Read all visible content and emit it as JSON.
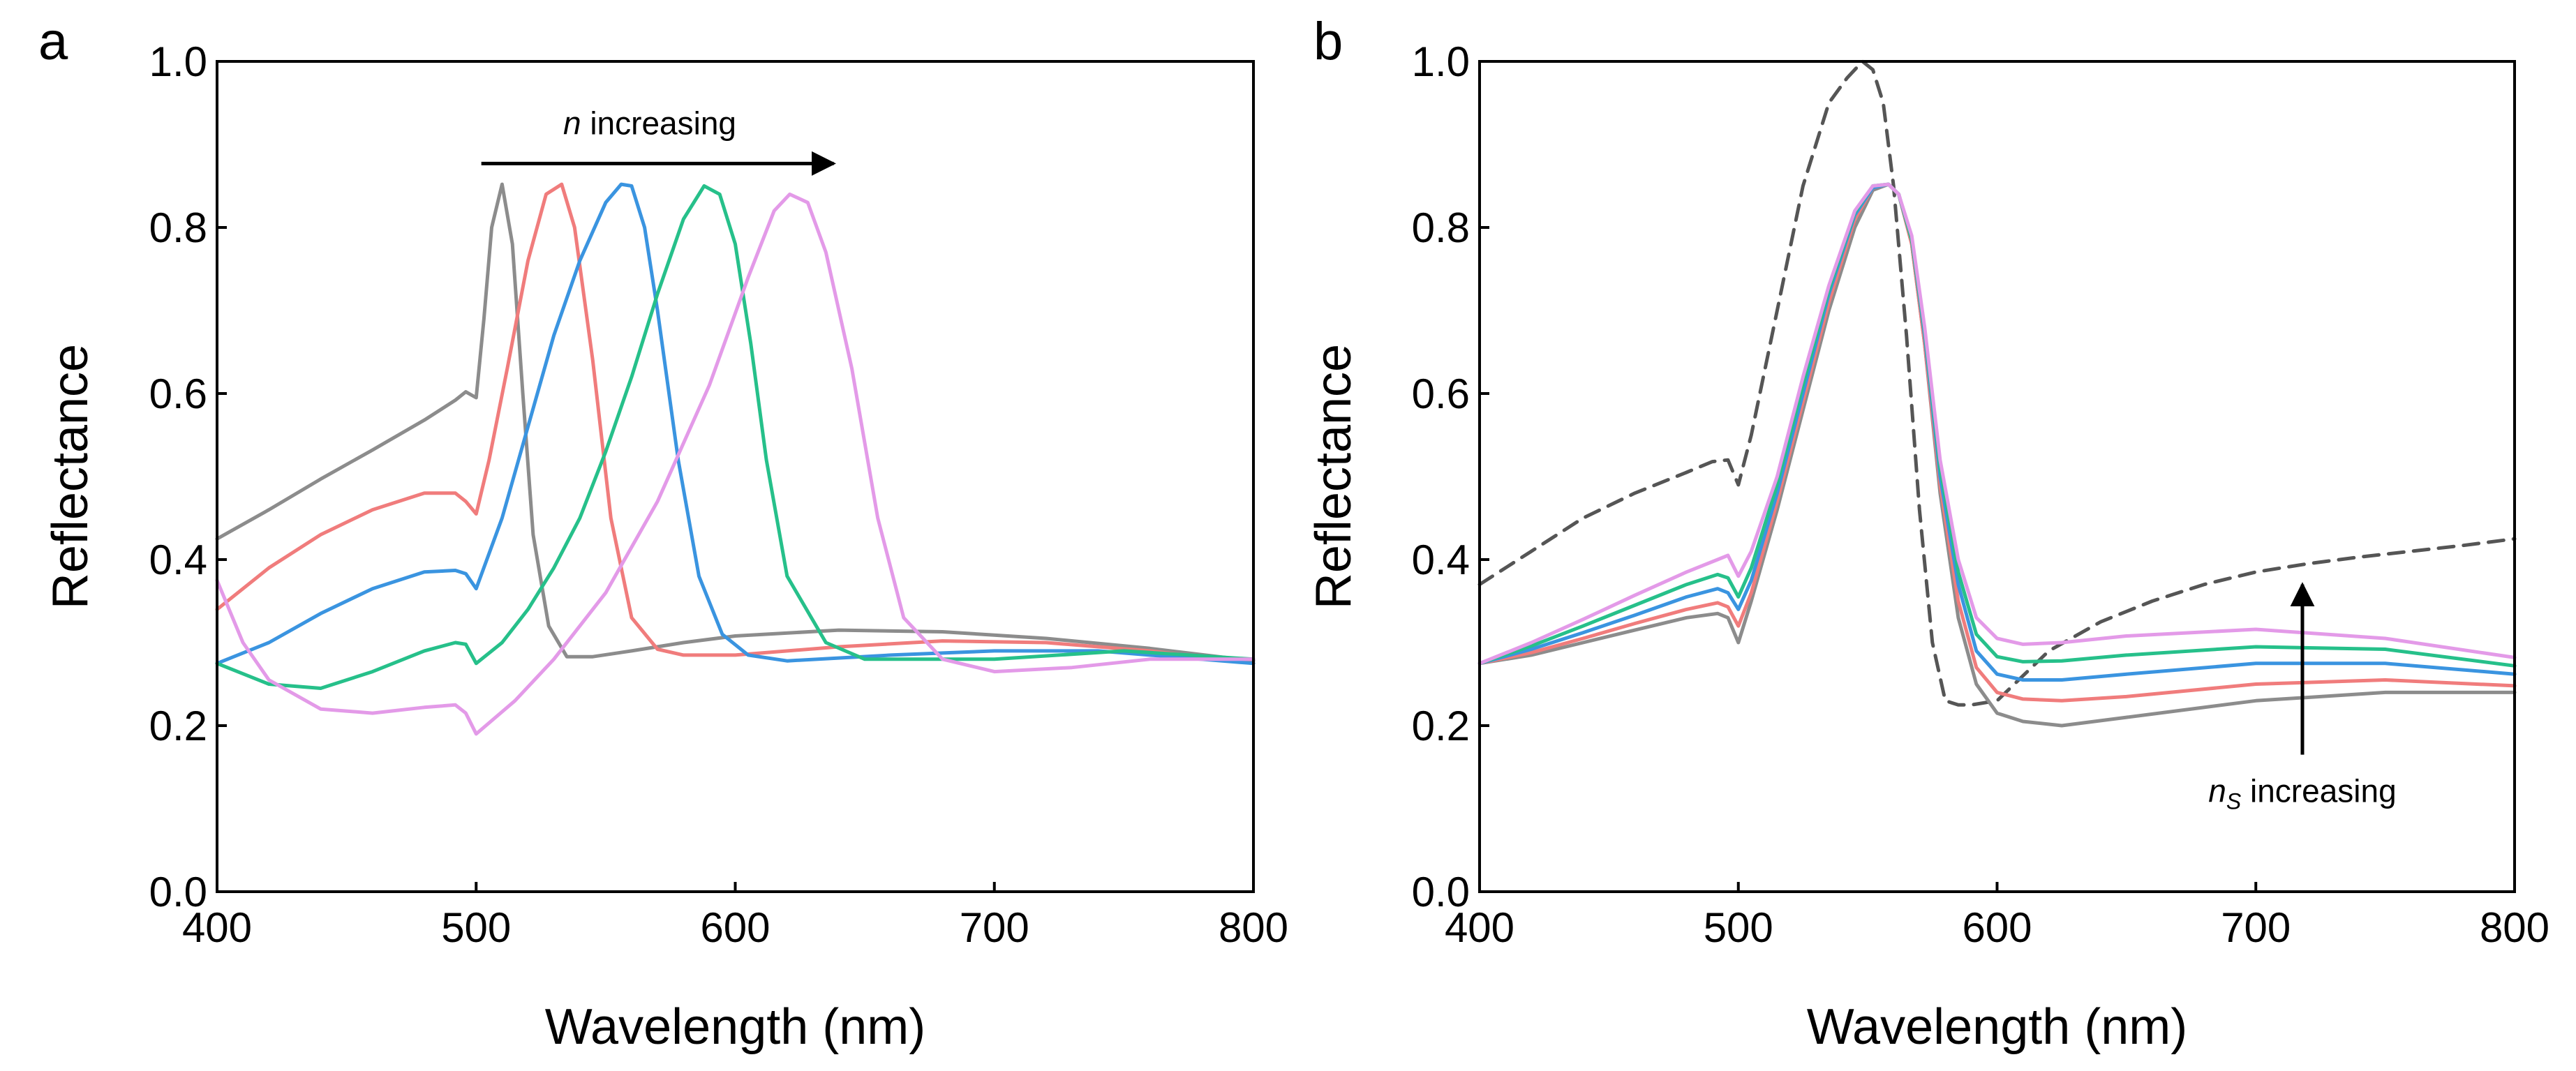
{
  "chart_data": [
    {
      "panel": "a",
      "type": "line",
      "xlabel": "Wavelength (nm)",
      "ylabel": "Reflectance",
      "xlim": [
        400,
        800
      ],
      "ylim": [
        0.0,
        1.0
      ],
      "xticks": [
        "400",
        "500",
        "600",
        "700",
        "800"
      ],
      "yticks": [
        "0.0",
        "0.2",
        "0.4",
        "0.6",
        "0.8",
        "1.0"
      ],
      "grid": false,
      "annotation": {
        "label_italic": "n",
        "label_rest": " increasing",
        "arrow_from": [
          502,
          0.877
        ],
        "arrow_to": [
          638,
          0.877
        ],
        "label_at": [
          567,
          0.912
        ]
      },
      "series": [
        {
          "name": "gray",
          "color": "#8c8c8c",
          "x": [
            400,
            420,
            440,
            460,
            480,
            492,
            496,
            500,
            503,
            506,
            510,
            514,
            518,
            522,
            528,
            535,
            545,
            560,
            580,
            600,
            640,
            680,
            720,
            760,
            800
          ],
          "y": [
            0.425,
            0.46,
            0.497,
            0.532,
            0.568,
            0.592,
            0.602,
            0.595,
            0.69,
            0.8,
            0.852,
            0.78,
            0.6,
            0.43,
            0.32,
            0.283,
            0.283,
            0.29,
            0.3,
            0.308,
            0.315,
            0.313,
            0.305,
            0.293,
            0.278
          ]
        },
        {
          "name": "red",
          "color": "#f07c7c",
          "x": [
            400,
            420,
            440,
            460,
            480,
            492,
            496,
            500,
            505,
            512,
            520,
            527,
            533,
            538,
            545,
            552,
            560,
            570,
            580,
            600,
            640,
            680,
            720,
            760,
            800
          ],
          "y": [
            0.34,
            0.39,
            0.43,
            0.46,
            0.48,
            0.48,
            0.47,
            0.455,
            0.52,
            0.63,
            0.76,
            0.84,
            0.852,
            0.8,
            0.64,
            0.45,
            0.33,
            0.292,
            0.285,
            0.285,
            0.295,
            0.302,
            0.3,
            0.29,
            0.275
          ]
        },
        {
          "name": "blue",
          "color": "#3a94e0",
          "x": [
            400,
            420,
            440,
            460,
            480,
            492,
            496,
            500,
            510,
            520,
            530,
            540,
            550,
            556,
            560,
            565,
            570,
            578,
            586,
            595,
            605,
            620,
            660,
            700,
            740,
            800
          ],
          "y": [
            0.275,
            0.3,
            0.335,
            0.365,
            0.385,
            0.387,
            0.383,
            0.365,
            0.45,
            0.56,
            0.67,
            0.76,
            0.83,
            0.852,
            0.85,
            0.8,
            0.7,
            0.52,
            0.38,
            0.31,
            0.285,
            0.278,
            0.285,
            0.29,
            0.29,
            0.275
          ]
        },
        {
          "name": "green",
          "color": "#26c08a",
          "x": [
            400,
            420,
            440,
            460,
            480,
            492,
            496,
            500,
            510,
            520,
            530,
            540,
            550,
            560,
            570,
            580,
            588,
            594,
            600,
            606,
            612,
            620,
            635,
            650,
            700,
            750,
            800
          ],
          "y": [
            0.275,
            0.25,
            0.245,
            0.265,
            0.29,
            0.3,
            0.298,
            0.275,
            0.3,
            0.34,
            0.39,
            0.45,
            0.53,
            0.62,
            0.72,
            0.81,
            0.85,
            0.84,
            0.78,
            0.66,
            0.52,
            0.38,
            0.3,
            0.28,
            0.28,
            0.29,
            0.28
          ]
        },
        {
          "name": "violet",
          "color": "#e39ae8",
          "x": [
            400,
            410,
            420,
            440,
            460,
            480,
            492,
            496,
            500,
            515,
            530,
            550,
            570,
            590,
            605,
            615,
            621,
            628,
            635,
            645,
            655,
            665,
            680,
            700,
            730,
            760,
            800
          ],
          "y": [
            0.375,
            0.3,
            0.255,
            0.22,
            0.215,
            0.222,
            0.225,
            0.215,
            0.19,
            0.23,
            0.28,
            0.36,
            0.47,
            0.61,
            0.74,
            0.82,
            0.84,
            0.83,
            0.77,
            0.63,
            0.45,
            0.33,
            0.28,
            0.265,
            0.27,
            0.28,
            0.28
          ]
        }
      ]
    },
    {
      "panel": "b",
      "type": "line",
      "xlabel": "Wavelength (nm)",
      "ylabel": "Reflectance",
      "xlim": [
        400,
        800
      ],
      "ylim": [
        0.0,
        1.0
      ],
      "xticks": [
        "400",
        "500",
        "600",
        "700",
        "800"
      ],
      "yticks": [
        "0.0",
        "0.2",
        "0.4",
        "0.6",
        "0.8",
        "1.0"
      ],
      "grid": false,
      "annotation": {
        "label_italic": "n",
        "label_subscript": "S",
        "label_rest": " increasing",
        "arrow_from": [
          718,
          0.165
        ],
        "arrow_to": [
          718,
          0.37
        ],
        "label_at": [
          718,
          0.108
        ]
      },
      "series": [
        {
          "name": "dashed",
          "color": "#555555",
          "dashed": true,
          "x": [
            400,
            420,
            440,
            460,
            480,
            490,
            496,
            500,
            505,
            515,
            525,
            535,
            542,
            548,
            552,
            556,
            560,
            565,
            570,
            575,
            580,
            585,
            590,
            600,
            610,
            620,
            640,
            660,
            680,
            700,
            720,
            740,
            760,
            780,
            800
          ],
          "y": [
            0.37,
            0.41,
            0.45,
            0.48,
            0.505,
            0.518,
            0.52,
            0.49,
            0.55,
            0.7,
            0.85,
            0.95,
            0.98,
            1.0,
            0.99,
            0.95,
            0.85,
            0.67,
            0.46,
            0.3,
            0.23,
            0.225,
            0.225,
            0.23,
            0.26,
            0.29,
            0.325,
            0.35,
            0.37,
            0.385,
            0.395,
            0.403,
            0.41,
            0.417,
            0.425
          ]
        },
        {
          "name": "gray",
          "color": "#8c8c8c",
          "x": [
            400,
            420,
            440,
            460,
            480,
            492,
            496,
            500,
            505,
            515,
            525,
            535,
            545,
            552,
            558,
            562,
            567,
            572,
            578,
            585,
            592,
            600,
            610,
            625,
            650,
            700,
            750,
            800
          ],
          "y": [
            0.275,
            0.285,
            0.3,
            0.315,
            0.33,
            0.335,
            0.33,
            0.3,
            0.35,
            0.46,
            0.58,
            0.7,
            0.8,
            0.845,
            0.852,
            0.84,
            0.78,
            0.66,
            0.48,
            0.33,
            0.25,
            0.215,
            0.205,
            0.2,
            0.21,
            0.23,
            0.24,
            0.24
          ]
        },
        {
          "name": "red",
          "color": "#f07c7c",
          "x": [
            400,
            420,
            440,
            460,
            480,
            492,
            496,
            500,
            505,
            515,
            525,
            535,
            545,
            552,
            558,
            562,
            567,
            572,
            578,
            585,
            592,
            600,
            610,
            625,
            650,
            700,
            750,
            800
          ],
          "y": [
            0.275,
            0.288,
            0.305,
            0.323,
            0.34,
            0.348,
            0.343,
            0.32,
            0.36,
            0.47,
            0.59,
            0.71,
            0.81,
            0.848,
            0.852,
            0.84,
            0.78,
            0.66,
            0.49,
            0.35,
            0.27,
            0.24,
            0.232,
            0.23,
            0.235,
            0.25,
            0.255,
            0.248
          ]
        },
        {
          "name": "blue",
          "color": "#3a94e0",
          "x": [
            400,
            420,
            440,
            460,
            480,
            492,
            496,
            500,
            505,
            515,
            525,
            535,
            545,
            552,
            558,
            562,
            567,
            572,
            578,
            585,
            592,
            600,
            610,
            625,
            650,
            700,
            750,
            800
          ],
          "y": [
            0.275,
            0.292,
            0.312,
            0.333,
            0.355,
            0.365,
            0.36,
            0.34,
            0.375,
            0.48,
            0.6,
            0.72,
            0.815,
            0.848,
            0.852,
            0.84,
            0.785,
            0.67,
            0.5,
            0.37,
            0.29,
            0.262,
            0.255,
            0.255,
            0.262,
            0.275,
            0.275,
            0.262
          ]
        },
        {
          "name": "green",
          "color": "#26c08a",
          "x": [
            400,
            420,
            440,
            460,
            480,
            492,
            496,
            500,
            505,
            515,
            525,
            535,
            545,
            552,
            558,
            562,
            567,
            572,
            578,
            585,
            592,
            600,
            610,
            625,
            650,
            700,
            750,
            800
          ],
          "y": [
            0.275,
            0.296,
            0.32,
            0.345,
            0.37,
            0.382,
            0.378,
            0.355,
            0.39,
            0.49,
            0.61,
            0.725,
            0.818,
            0.85,
            0.852,
            0.84,
            0.785,
            0.675,
            0.51,
            0.385,
            0.31,
            0.283,
            0.277,
            0.278,
            0.285,
            0.295,
            0.292,
            0.272
          ]
        },
        {
          "name": "violet",
          "color": "#e39ae8",
          "x": [
            400,
            420,
            440,
            460,
            480,
            492,
            496,
            500,
            505,
            515,
            525,
            535,
            545,
            552,
            558,
            562,
            567,
            572,
            578,
            585,
            592,
            600,
            610,
            625,
            650,
            700,
            750,
            800
          ],
          "y": [
            0.275,
            0.3,
            0.328,
            0.357,
            0.385,
            0.4,
            0.405,
            0.38,
            0.41,
            0.5,
            0.62,
            0.73,
            0.82,
            0.85,
            0.852,
            0.84,
            0.79,
            0.68,
            0.52,
            0.4,
            0.33,
            0.305,
            0.298,
            0.3,
            0.308,
            0.316,
            0.305,
            0.282
          ]
        }
      ]
    }
  ]
}
